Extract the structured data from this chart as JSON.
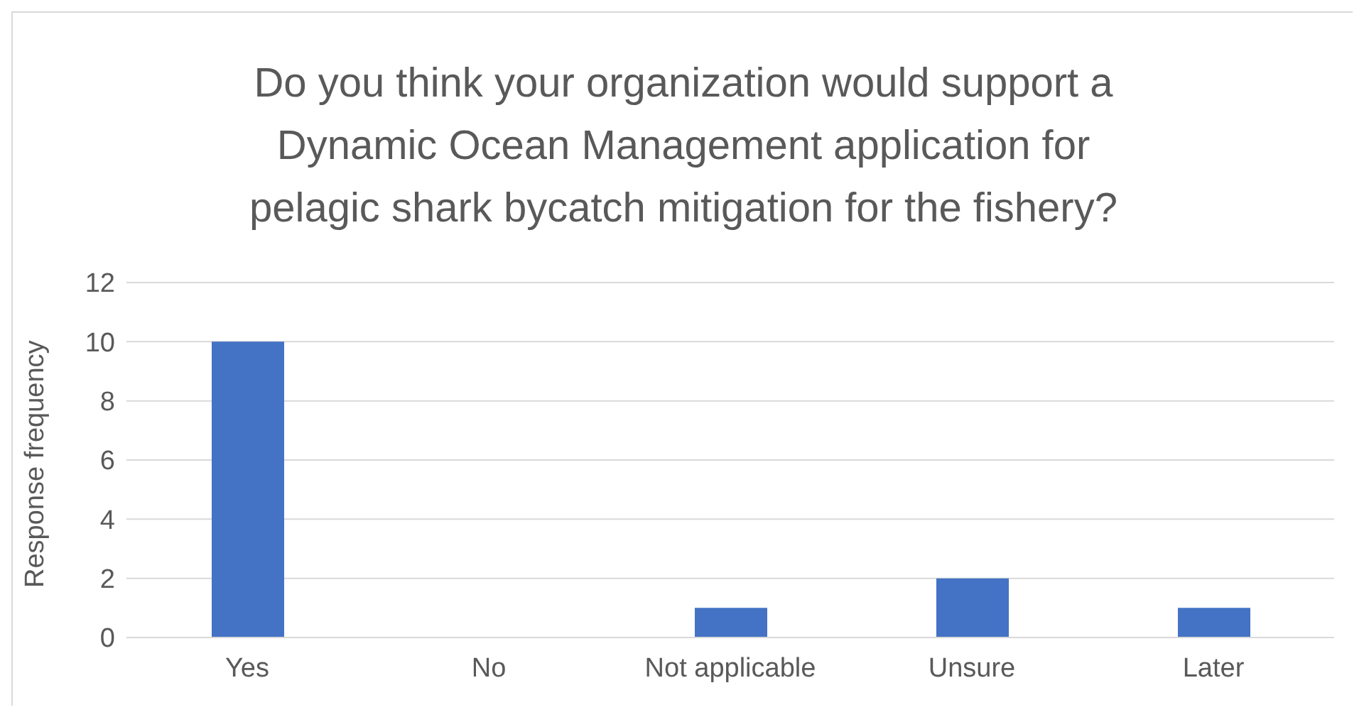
{
  "chart_data": {
    "type": "bar",
    "title": "Do you think your organization would support a Dynamic Ocean Management application for pelagic shark bycatch mitigation for the fishery?",
    "ylabel": "Response frequency",
    "categories": [
      "Yes",
      "No",
      "Not applicable",
      "Unsure",
      "Later"
    ],
    "values": [
      10,
      0,
      1,
      2,
      1
    ],
    "color": "#4472c4",
    "ylim": [
      0,
      12
    ],
    "yticks": [
      0,
      2,
      4,
      6,
      8,
      10,
      12
    ],
    "grid": "y"
  }
}
